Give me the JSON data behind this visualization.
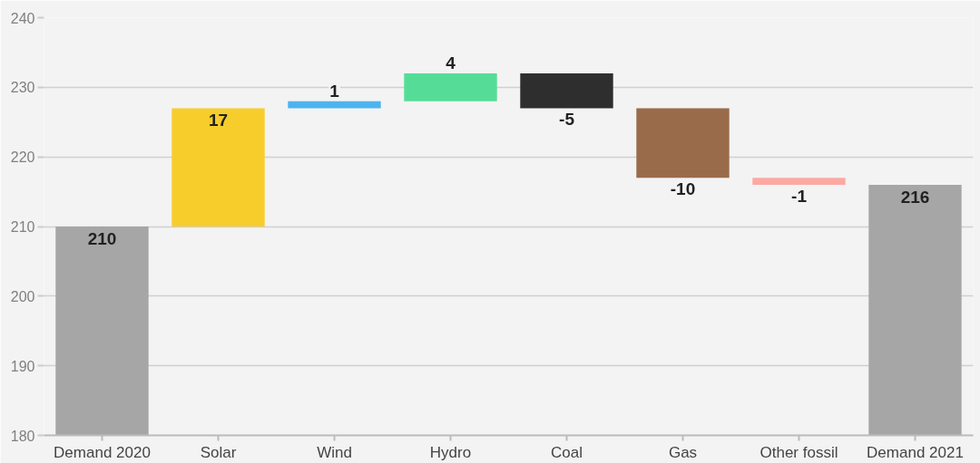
{
  "chart_data": {
    "type": "bar",
    "categories": [
      "Demand 2020",
      "Solar",
      "Wind",
      "Hydro",
      "Coal",
      "Gas",
      "Other fossil",
      "Demand 2021"
    ],
    "values": [
      210,
      17,
      1,
      4,
      -5,
      -10,
      -1,
      216
    ],
    "base": [
      null,
      210,
      227,
      228,
      232,
      227,
      217,
      null
    ],
    "colors": [
      "#a6a6a6",
      "#f7cd2c",
      "#4db3ef",
      "#55dd97",
      "#2e2e2e",
      "#9a6b4b",
      "#fca9a3",
      "#a6a6a6"
    ],
    "ylim": [
      180,
      240
    ],
    "yticks": [
      180,
      190,
      200,
      210,
      220,
      230,
      240
    ],
    "grid": "y",
    "data_labels": true
  }
}
